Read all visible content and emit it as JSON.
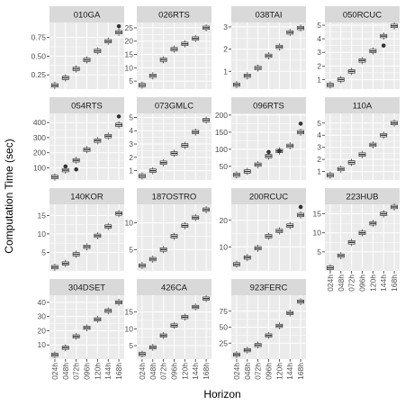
{
  "chart_data": {
    "type": "boxplot-facets",
    "xlabel": "Horizon",
    "ylabel": "Computation Time (sec)",
    "categories": [
      "024h",
      "048h",
      "072h",
      "096h",
      "120h",
      "144h",
      "168h"
    ],
    "grid": true,
    "colors": {
      "panel": "#ebebeb",
      "strip": "#d9d9d9",
      "grid": "#ffffff",
      "box_fill": "#ffffff",
      "box_line": "#333333"
    },
    "facets": [
      {
        "name": "010GA",
        "ylim": [
          0.06,
          0.95
        ],
        "yticks": [
          0.25,
          0.5,
          0.75
        ],
        "ytick_labels": [
          "0.25",
          "0.50",
          "0.75"
        ],
        "medians": [
          0.11,
          0.21,
          0.33,
          0.45,
          0.57,
          0.7,
          0.82
        ],
        "outliers": [
          [
            6,
            0.9
          ]
        ]
      },
      {
        "name": "026RTS",
        "ylim": [
          2,
          27
        ],
        "yticks": [
          5,
          10,
          15,
          20,
          25
        ],
        "ytick_labels": [
          "5",
          "10",
          "15",
          "20",
          "25"
        ],
        "medians": [
          3.5,
          7,
          13,
          17,
          19,
          21,
          25
        ],
        "outliers": []
      },
      {
        "name": "038TAI",
        "ylim": [
          0.2,
          3.2
        ],
        "yticks": [
          1,
          2,
          3
        ],
        "ytick_labels": [
          "1",
          "2",
          "3"
        ],
        "medians": [
          0.4,
          0.8,
          1.15,
          1.7,
          2.1,
          2.75,
          2.95
        ],
        "outliers": []
      },
      {
        "name": "050RCUC",
        "ylim": [
          0.3,
          5.2
        ],
        "yticks": [
          1,
          2,
          3,
          4,
          5
        ],
        "ytick_labels": [
          "1",
          "2",
          "3",
          "4",
          "5"
        ],
        "medians": [
          0.6,
          1.0,
          1.6,
          2.4,
          3.1,
          4.2,
          4.95
        ],
        "outliers": [
          [
            5,
            3.5
          ]
        ]
      },
      {
        "name": "054RTS",
        "ylim": [
          20,
          460
        ],
        "yticks": [
          100,
          200,
          300,
          400
        ],
        "ytick_labels": [
          "100",
          "200",
          "300",
          "400"
        ],
        "medians": [
          40,
          85,
          150,
          220,
          280,
          310,
          385
        ],
        "outliers": [
          [
            1,
            110
          ],
          [
            2,
            90
          ],
          [
            6,
            440
          ]
        ]
      },
      {
        "name": "073GMLC",
        "ylim": [
          0.3,
          5.3
        ],
        "yticks": [
          1,
          2,
          3,
          4,
          5
        ],
        "ytick_labels": [
          "1",
          "2",
          "3",
          "4",
          "5"
        ],
        "medians": [
          0.6,
          1.0,
          1.6,
          2.3,
          2.9,
          3.9,
          4.8
        ],
        "outliers": []
      },
      {
        "name": "096RTS",
        "ylim": [
          10,
          205
        ],
        "yticks": [
          50,
          100,
          150,
          200
        ],
        "ytick_labels": [
          "50",
          "100",
          "150",
          "200"
        ],
        "medians": [
          25,
          35,
          55,
          80,
          95,
          110,
          150
        ],
        "outliers": [
          [
            3,
            92
          ],
          [
            4,
            95
          ],
          [
            6,
            175
          ]
        ]
      },
      {
        "name": "110A",
        "ylim": [
          0.3,
          5.8
        ],
        "yticks": [
          1,
          2,
          3,
          4,
          5
        ],
        "ytick_labels": [
          "1",
          "2",
          "3",
          "4",
          "5"
        ],
        "medians": [
          0.7,
          1.2,
          1.75,
          2.4,
          3.2,
          4.0,
          5.0
        ],
        "outliers": []
      },
      {
        "name": "140KOR",
        "ylim": [
          0,
          18
        ],
        "yticks": [
          5,
          10,
          15
        ],
        "ytick_labels": [
          "5",
          "10",
          "15"
        ],
        "medians": [
          1.0,
          2.0,
          4.5,
          6.5,
          9.5,
          12.0,
          15.5
        ],
        "outliers": []
      },
      {
        "name": "187OSTRO",
        "ylim": [
          1,
          13.5
        ],
        "yticks": [
          5,
          10
        ],
        "ytick_labels": [
          "5",
          "10"
        ],
        "medians": [
          2.0,
          3.2,
          5.0,
          7.5,
          9.5,
          11.0,
          12.5
        ],
        "outliers": []
      },
      {
        "name": "200RCUC",
        "ylim": [
          1,
          26
        ],
        "yticks": [
          10,
          20
        ],
        "ytick_labels": [
          "10",
          "20"
        ],
        "medians": [
          3.5,
          6.0,
          9.5,
          14.0,
          16.0,
          18.0,
          22.0
        ],
        "outliers": [
          [
            6,
            25
          ]
        ]
      },
      {
        "name": "223HUB",
        "ylim": [
          0,
          17.5
        ],
        "yticks": [
          5,
          10,
          15
        ],
        "ytick_labels": [
          "5",
          "10",
          "15"
        ],
        "medians": [
          0.8,
          4.0,
          7.5,
          10.0,
          12.5,
          15.0,
          16.8
        ],
        "outliers": []
      },
      {
        "name": "304DSET",
        "ylim": [
          0,
          45
        ],
        "yticks": [
          10,
          20,
          30,
          40
        ],
        "ytick_labels": [
          "10",
          "20",
          "30",
          "40"
        ],
        "medians": [
          3.0,
          8.0,
          16.0,
          22.0,
          28.0,
          34.0,
          40.0
        ],
        "outliers": []
      },
      {
        "name": "426CA",
        "ylim": [
          1,
          20
        ],
        "yticks": [
          5,
          10,
          15
        ],
        "ytick_labels": [
          "5",
          "10",
          "15"
        ],
        "medians": [
          2.5,
          4.5,
          8.0,
          11.0,
          13.5,
          16.5,
          19.0
        ],
        "outliers": []
      },
      {
        "name": "923FERC",
        "ylim": [
          0,
          100
        ],
        "yticks": [
          25,
          50,
          75
        ],
        "ytick_labels": [
          "25",
          "50",
          "75"
        ],
        "medians": [
          7,
          14,
          22,
          37,
          52,
          72,
          90
        ],
        "outliers": []
      }
    ]
  }
}
